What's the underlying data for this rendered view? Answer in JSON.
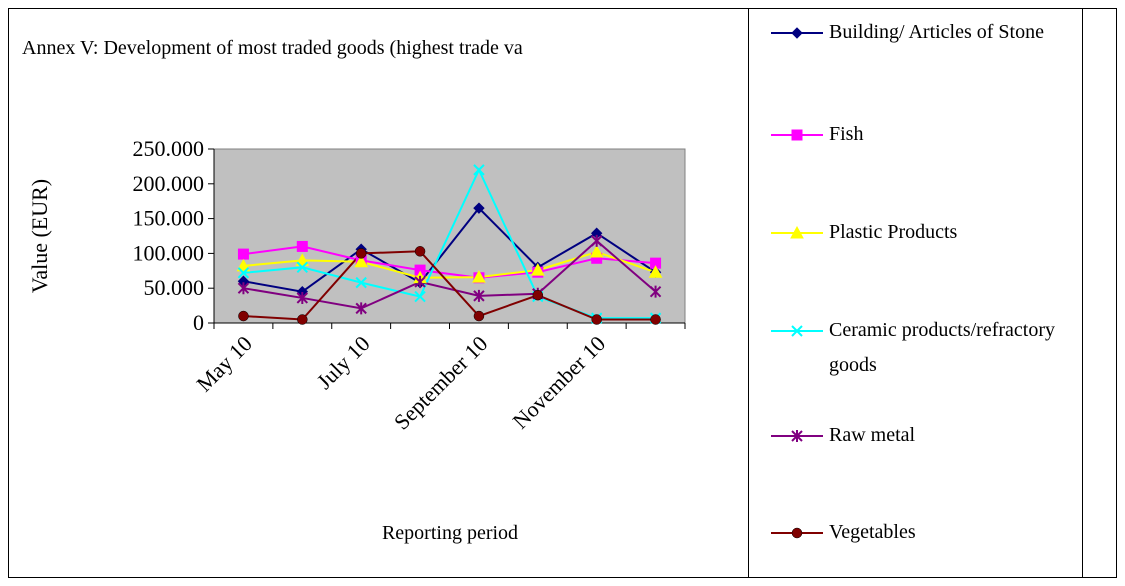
{
  "chart_data": {
    "type": "line",
    "title": "Annex V: Development of most traded goods (highest trade va",
    "x_label": "Reporting period",
    "y_label": "Value (EUR)",
    "categories": [
      "May 10",
      null,
      "July 10",
      null,
      "September 10",
      null,
      "November 10",
      null
    ],
    "ylim": [
      0,
      250000
    ],
    "yticks": [
      0,
      {
        "value": 50000,
        "label": "50.000"
      },
      {
        "value": 100000,
        "label": "100.000"
      },
      {
        "value": 150000,
        "label": "150.000"
      },
      {
        "value": 200000,
        "label": "200.000"
      },
      {
        "value": 250000,
        "label": "250.000"
      }
    ],
    "series": [
      {
        "name": "Building/ Articles of Stone",
        "color": "#000080",
        "marker": "diamond",
        "values": [
          60000,
          45000,
          106000,
          58000,
          165000,
          80000,
          129000,
          73000
        ]
      },
      {
        "name": "Fish",
        "color": "#ff00ff",
        "marker": "square",
        "values": [
          99000,
          110000,
          90000,
          76000,
          65000,
          73000,
          93000,
          86000
        ]
      },
      {
        "name": "Plastic Products",
        "color": "#ffff00",
        "marker": "triangle",
        "values": [
          82000,
          90000,
          88000,
          65000,
          66000,
          76000,
          102000,
          73000
        ]
      },
      {
        "name": "Ceramic products/refractory goods",
        "color": "#00ffff",
        "marker": "x",
        "values": [
          72000,
          80000,
          58000,
          38000,
          220000,
          38000,
          7000,
          7000
        ]
      },
      {
        "name": "Raw metal",
        "color": "#800080",
        "marker": "star",
        "values": [
          50000,
          36000,
          21000,
          59000,
          39000,
          42000,
          118000,
          45000
        ]
      },
      {
        "name": "Vegetables",
        "color": "#800000",
        "marker": "circle",
        "values": [
          10000,
          5000,
          100000,
          103000,
          10000,
          40000,
          5000,
          5000
        ]
      }
    ]
  }
}
